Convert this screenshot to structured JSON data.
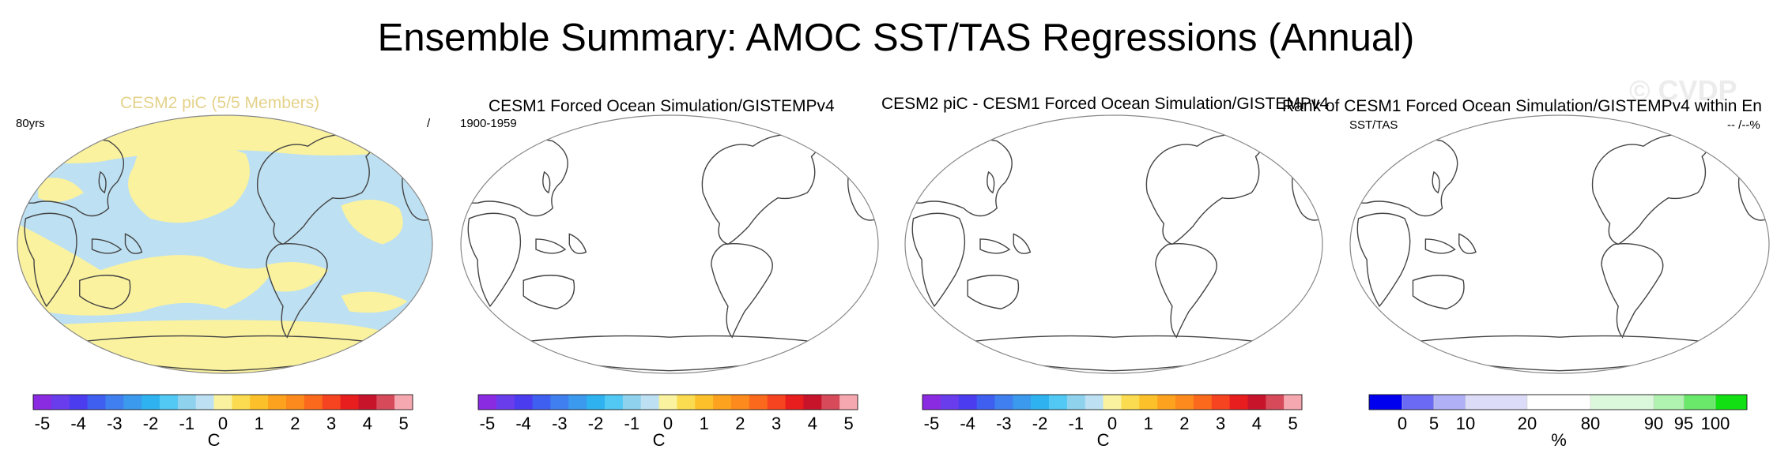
{
  "title": "Ensemble Summary: AMOC SST/TAS Regressions (Annual)",
  "watermark": "© CVDP",
  "colors": {
    "land_outline": "#444444",
    "map_border": "#888888",
    "blue_fill": "#bde0f2",
    "yellow_fill": "#faf29e",
    "tan_title": "#e4d28a"
  },
  "panels": [
    {
      "title": "CESM2 piC (5/5 Members)",
      "left_label": "80yrs",
      "right_label": "/",
      "fill": "pattern"
    },
    {
      "title": "CESM1 Forced Ocean Simulation/GISTEMPv4",
      "left_label": "1900-1959",
      "right_label": "",
      "fill": "none"
    },
    {
      "title": "CESM2 piC - CESM1 Forced Ocean Simulation/GISTEMPv4",
      "left_label": "",
      "right_label": "",
      "fill": "none"
    },
    {
      "title": "Rank of CESM1 Forced Ocean Simulation/GISTEMPv4 within En",
      "left_label": "SST/TAS",
      "right_label": "-- /--%",
      "fill": "none"
    }
  ],
  "colorbar_regression": {
    "unit": "C",
    "ticks": [
      "-5",
      "-4",
      "-3",
      "-2",
      "-1",
      "0",
      "1",
      "2",
      "3",
      "4",
      "5"
    ],
    "colors": [
      "#8a2be2",
      "#6a3dec",
      "#4b3cf0",
      "#3f5ff0",
      "#3f7ff0",
      "#3b99ee",
      "#2fb3f0",
      "#52c8f4",
      "#8fd2ee",
      "#bde0f2",
      "#faf29e",
      "#fbdc50",
      "#fcc02a",
      "#fca21f",
      "#fc8a1c",
      "#fb6a1c",
      "#f74420",
      "#e81e1e",
      "#c8142a",
      "#d64a5a",
      "#f6a8b0"
    ]
  },
  "colorbar_rank": {
    "unit": "%",
    "ticks": [
      "0",
      "5",
      "10",
      "20",
      "80",
      "90",
      "95",
      "100"
    ],
    "colors": [
      "#0000ee",
      "#6a6af4",
      "#b0b0f6",
      "#dcdcf8",
      "#ffffff",
      "#dcf8dc",
      "#b0f2b0",
      "#6ae86a",
      "#12e012"
    ]
  }
}
